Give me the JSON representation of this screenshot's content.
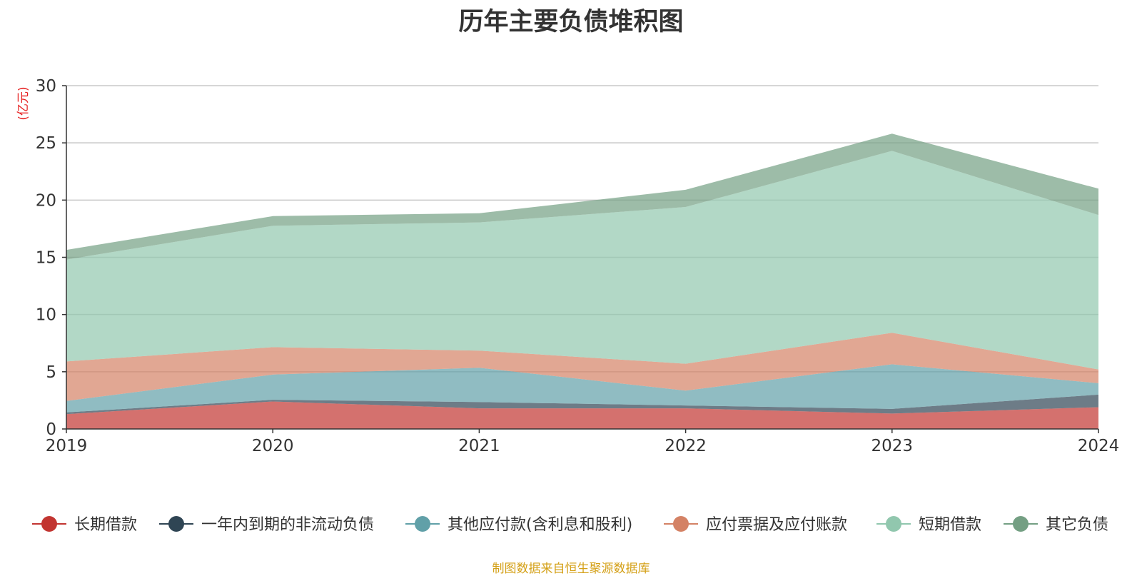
{
  "chart_data": {
    "type": "area",
    "title": "历年主要负债堆积图",
    "ylabel": "(亿元)",
    "ylim": [
      0,
      30
    ],
    "y_ticks": [
      "0",
      "5",
      "10",
      "15",
      "20",
      "25",
      "30"
    ],
    "y_tick_values": [
      0,
      5,
      10,
      15,
      20,
      25,
      30
    ],
    "categories": [
      "2019",
      "2020",
      "2021",
      "2022",
      "2023",
      "2024"
    ],
    "stacked": true,
    "grid": true,
    "legend_position": "bottom",
    "series": [
      {
        "name": "长期借款",
        "color": "#c23531",
        "values": [
          1.3,
          2.4,
          1.8,
          1.8,
          1.35,
          1.9
        ]
      },
      {
        "name": "一年内到期的非流动负债",
        "color": "#2f4554",
        "values": [
          0.15,
          0.15,
          0.55,
          0.25,
          0.4,
          1.1
        ]
      },
      {
        "name": "其他应付款(含利息和股利)",
        "color": "#61a0a8",
        "values": [
          1.0,
          2.2,
          3.0,
          1.3,
          3.9,
          1.0
        ]
      },
      {
        "name": "应付票据及应付账款",
        "color": "#d48265",
        "values": [
          3.45,
          2.4,
          1.5,
          2.35,
          2.75,
          1.2
        ]
      },
      {
        "name": "短期借款",
        "color": "#91c7ae",
        "values": [
          8.9,
          10.6,
          11.2,
          13.7,
          15.9,
          13.5
        ]
      },
      {
        "name": "其它负债",
        "color": "#749f83",
        "values": [
          0.85,
          0.85,
          0.8,
          1.5,
          1.5,
          2.3
        ]
      }
    ]
  },
  "source_note": "制图数据来自恒生聚源数据库"
}
